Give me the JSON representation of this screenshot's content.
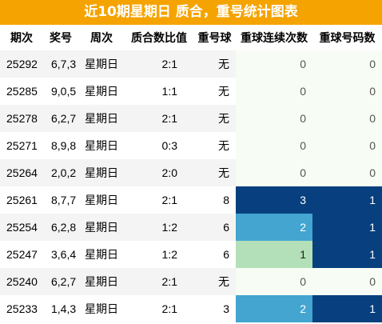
{
  "title": "近10期星期日 质合，重号统计图表",
  "columns": [
    "期次",
    "奖号",
    "周次",
    "质合数比值",
    "重号球",
    "重球连续次数",
    "重球号码数"
  ],
  "heat_colors": {
    "0": "#f7fcf5",
    "1": "#b3e0b8",
    "2": "#43a5d0",
    "3": "#08407f",
    "text_light": "#ffffff",
    "text_dark": "#555555"
  },
  "rows": [
    {
      "qi": "25292",
      "jianghao": "6,7,3",
      "zhouci": "星期日",
      "bizhi": "2:1",
      "chonghao": "无",
      "lianxu": "0",
      "haoma": "0"
    },
    {
      "qi": "25285",
      "jianghao": "9,0,5",
      "zhouci": "星期日",
      "bizhi": "1:1",
      "chonghao": "无",
      "lianxu": "0",
      "haoma": "0"
    },
    {
      "qi": "25278",
      "jianghao": "6,2,7",
      "zhouci": "星期日",
      "bizhi": "2:1",
      "chonghao": "无",
      "lianxu": "0",
      "haoma": "0"
    },
    {
      "qi": "25271",
      "jianghao": "8,9,8",
      "zhouci": "星期日",
      "bizhi": "0:3",
      "chonghao": "无",
      "lianxu": "0",
      "haoma": "0"
    },
    {
      "qi": "25264",
      "jianghao": "2,0,2",
      "zhouci": "星期日",
      "bizhi": "2:0",
      "chonghao": "无",
      "lianxu": "0",
      "haoma": "0"
    },
    {
      "qi": "25261",
      "jianghao": "8,7,7",
      "zhouci": "星期日",
      "bizhi": "2:1",
      "chonghao": "8",
      "lianxu": "3",
      "haoma": "1"
    },
    {
      "qi": "25254",
      "jianghao": "6,2,8",
      "zhouci": "星期日",
      "bizhi": "1:2",
      "chonghao": "6",
      "lianxu": "2",
      "haoma": "1"
    },
    {
      "qi": "25247",
      "jianghao": "3,6,4",
      "zhouci": "星期日",
      "bizhi": "1:2",
      "chonghao": "6",
      "lianxu": "1",
      "haoma": "1"
    },
    {
      "qi": "25240",
      "jianghao": "6,2,7",
      "zhouci": "星期日",
      "bizhi": "2:1",
      "chonghao": "无",
      "lianxu": "0",
      "haoma": "0"
    },
    {
      "qi": "25233",
      "jianghao": "1,4,3",
      "zhouci": "星期日",
      "bizhi": "2:1",
      "chonghao": "3",
      "lianxu": "2",
      "haoma": "1"
    }
  ]
}
